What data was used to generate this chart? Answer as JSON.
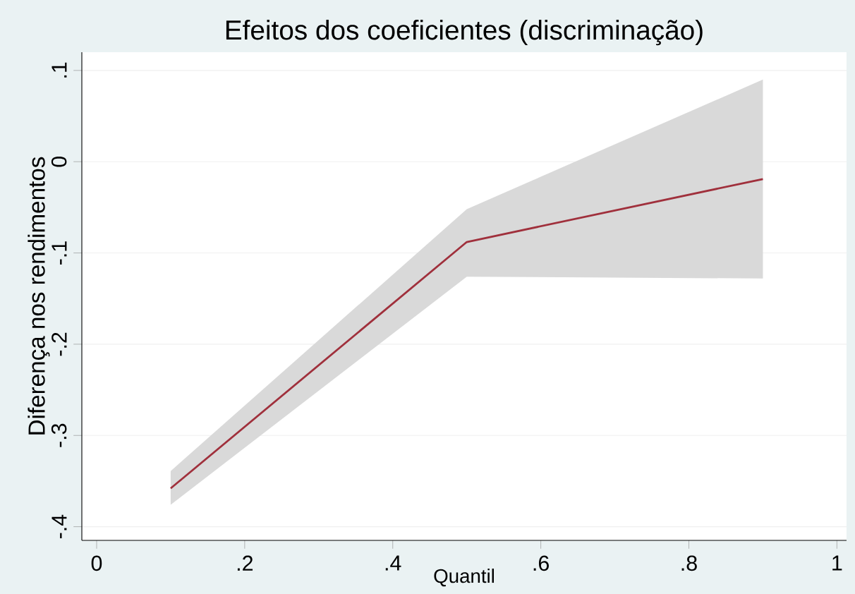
{
  "chart_data": {
    "type": "line",
    "title": "Efeitos dos coeficientes (discriminação)",
    "xlabel": "Quantil",
    "ylabel": "Diferença nos rendimentos",
    "x": [
      0.1,
      0.5,
      0.9
    ],
    "series": [
      {
        "color": "#a0303c",
        "values": [
          -0.358,
          -0.088,
          -0.019
        ],
        "lower": [
          -0.376,
          -0.126,
          -0.128
        ],
        "upper": [
          -0.339,
          -0.052,
          0.09
        ]
      }
    ],
    "xlim": [
      -0.02,
      1.013
    ],
    "ylim": [
      -0.415,
      0.12
    ],
    "xticks": [
      0,
      {
        "value": 0.2,
        "label": ".2"
      },
      {
        "value": 0.4,
        "label": ".4"
      },
      {
        "value": 0.6,
        "label": ".6"
      },
      {
        "value": 0.8,
        "label": ".8"
      },
      1
    ],
    "yticks": [
      {
        "value": -0.4,
        "label": "-.4"
      },
      {
        "value": -0.3,
        "label": "-.3"
      },
      {
        "value": -0.2,
        "label": "-.2"
      },
      {
        "value": -0.1,
        "label": "-.1"
      },
      0,
      {
        "value": 0.1,
        "label": ".1"
      }
    ],
    "grid": "y",
    "marker": "none",
    "line_style": "solid"
  }
}
